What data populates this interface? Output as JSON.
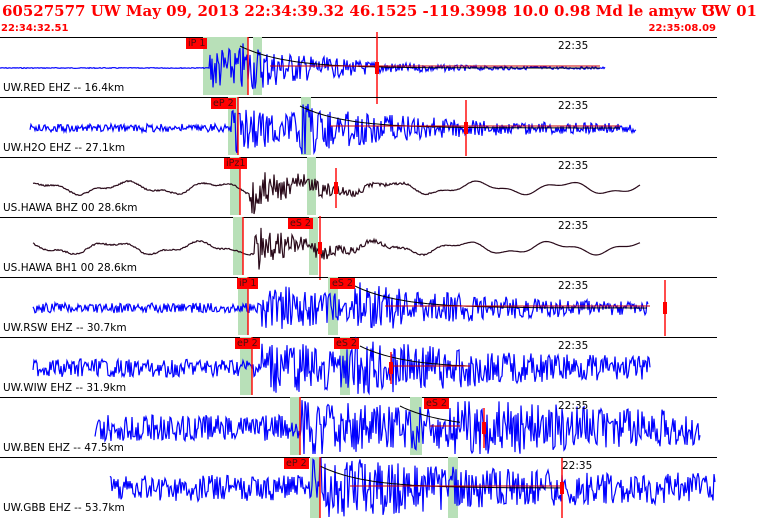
{
  "header": {
    "event_info": "60527577 UW May 09, 2013 22:34:39.32   46.1525 -119.3998 10.0 0.98 Md le amyw UW 01",
    "event_suffix": "3",
    "time_start": "22:34:32.51",
    "time_end": "22:35:08.09"
  },
  "colors": {
    "header_text": "#ff0000",
    "trace_ehz": "#0000ff",
    "trace_broadband": "#2a0a1a",
    "pick": "#ff0000",
    "pick_window": "#b8e0b8",
    "coda_curve": "#000000",
    "coda_fit": "#cc0000"
  },
  "traces": [
    {
      "label": "UW.RED EHZ -- 16.4km",
      "minute_label": "22:35",
      "picks": [
        "iP 1"
      ],
      "kind": "short"
    },
    {
      "label": "UW.H2O EHZ -- 27.1km",
      "minute_label": "22:35",
      "picks": [
        "eP 2"
      ],
      "kind": "short"
    },
    {
      "label": "US.HAWA BHZ 00 28.6km",
      "minute_label": "22:35",
      "picks": [
        "iPz1"
      ],
      "kind": "broad"
    },
    {
      "label": "US.HAWA BH1 00 28.6km",
      "minute_label": "22:35",
      "picks": [
        "eS 2"
      ],
      "kind": "broad"
    },
    {
      "label": "UW.RSW EHZ -- 30.7km",
      "minute_label": "22:35",
      "picks": [
        "iP 1",
        "eS 2"
      ],
      "kind": "short"
    },
    {
      "label": "UW.WIW EHZ -- 31.9km",
      "minute_label": "22:35",
      "picks": [
        "eP 2",
        "eS 2"
      ],
      "kind": "short"
    },
    {
      "label": "UW.BEN EHZ -- 47.5km",
      "minute_label": "22:35",
      "picks": [
        "eS 2"
      ],
      "kind": "short"
    },
    {
      "label": "UW.GBB EHZ -- 53.7km",
      "minute_label": "22:35",
      "picks": [
        "eP 2"
      ],
      "kind": "short"
    }
  ]
}
